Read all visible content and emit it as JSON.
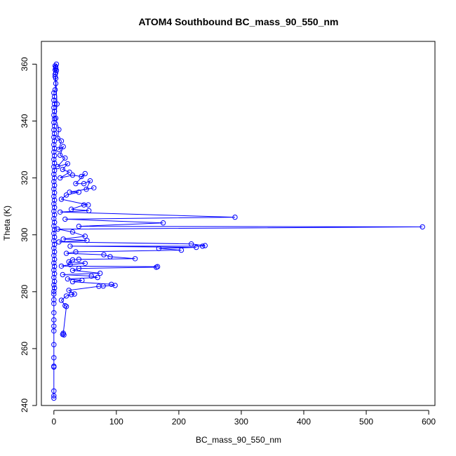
{
  "chart_data": {
    "type": "scatter",
    "title": "ATOM4 Southbound BC_mass_90_550_nm",
    "xlabel": "BC_mass_90_550_nm",
    "ylabel": "Theta (K)",
    "xlim": [
      -20,
      610
    ],
    "ylim": [
      240,
      368
    ],
    "x_ticks": [
      0,
      100,
      200,
      300,
      400,
      500,
      600
    ],
    "y_ticks": [
      240,
      260,
      280,
      300,
      320,
      340,
      360
    ],
    "connected": true,
    "series": [
      {
        "color": "#0000ff",
        "marker": "open-circle",
        "points": [
          [
            0,
            242.6
          ],
          [
            0,
            243.4
          ],
          [
            0,
            245.1
          ],
          [
            0,
            253.5
          ],
          [
            0,
            253.8
          ],
          [
            0,
            256.8
          ],
          [
            0,
            261.4
          ],
          [
            0,
            266.2
          ],
          [
            0,
            267.9
          ],
          [
            0,
            270.1
          ],
          [
            0,
            272.6
          ],
          [
            0,
            275.8
          ],
          [
            0,
            277.2
          ],
          [
            0,
            279.2
          ],
          [
            0,
            280.1
          ],
          [
            1,
            281.3
          ],
          [
            0,
            282.4
          ],
          [
            1,
            283.6
          ],
          [
            0,
            285.0
          ],
          [
            1,
            286.3
          ],
          [
            0,
            287.6
          ],
          [
            1,
            288.9
          ],
          [
            0,
            290.1
          ],
          [
            1,
            291.4
          ],
          [
            0,
            292.7
          ],
          [
            1,
            294.0
          ],
          [
            0,
            295.3
          ],
          [
            1,
            296.6
          ],
          [
            0,
            297.9
          ],
          [
            1,
            299.2
          ],
          [
            0,
            300.5
          ],
          [
            1,
            301.8
          ],
          [
            0,
            303.1
          ],
          [
            1,
            304.4
          ],
          [
            0,
            305.7
          ],
          [
            1,
            307.0
          ],
          [
            0,
            308.3
          ],
          [
            1,
            309.6
          ],
          [
            0,
            310.9
          ],
          [
            1,
            312.2
          ],
          [
            0,
            313.5
          ],
          [
            1,
            314.8
          ],
          [
            0,
            316.1
          ],
          [
            1,
            317.4
          ],
          [
            0,
            318.7
          ],
          [
            1,
            320.0
          ],
          [
            0,
            321.3
          ],
          [
            1,
            322.6
          ],
          [
            0,
            323.9
          ],
          [
            1,
            325.2
          ],
          [
            0,
            326.5
          ],
          [
            1,
            327.8
          ],
          [
            0,
            329.1
          ],
          [
            1,
            330.4
          ],
          [
            0,
            331.7
          ],
          [
            1,
            333.0
          ],
          [
            0,
            334.3
          ],
          [
            1,
            335.6
          ],
          [
            0,
            336.9
          ],
          [
            1,
            338.2
          ],
          [
            0,
            339.5
          ],
          [
            1,
            340.8
          ],
          [
            0,
            342.1
          ],
          [
            1,
            343.4
          ],
          [
            0,
            344.7
          ],
          [
            1,
            346.0
          ],
          [
            0,
            347.3
          ],
          [
            1,
            348.6
          ],
          [
            0,
            349.9
          ],
          [
            2,
            351.0
          ],
          [
            3,
            353.2
          ],
          [
            2,
            355.6
          ],
          [
            3,
            357.0
          ],
          [
            2,
            358.0
          ],
          [
            3,
            359.0
          ],
          [
            4,
            360.0
          ],
          [
            2,
            359.4
          ],
          [
            3,
            358.5
          ],
          [
            4,
            357.8
          ],
          [
            2,
            356.4
          ],
          [
            3,
            355.0
          ],
          [
            5,
            346.0
          ],
          [
            3,
            341.0
          ],
          [
            8,
            337.0
          ],
          [
            6,
            334.0
          ],
          [
            12,
            333.0
          ],
          [
            8,
            330.0
          ],
          [
            15,
            331.0
          ],
          [
            10,
            328.0
          ],
          [
            18,
            327.0
          ],
          [
            6,
            324.0
          ],
          [
            22,
            325.0
          ],
          [
            14,
            323.0
          ],
          [
            25,
            322.0
          ],
          [
            10,
            320.0
          ],
          [
            30,
            321.0
          ],
          [
            44,
            320.5
          ],
          [
            50,
            321.5
          ],
          [
            35,
            318.0
          ],
          [
            48,
            318.0
          ],
          [
            58,
            319.0
          ],
          [
            52,
            316.0
          ],
          [
            64,
            316.5
          ],
          [
            25,
            315.0
          ],
          [
            40,
            315.0
          ],
          [
            20,
            314.0
          ],
          [
            12,
            312.5
          ],
          [
            55,
            310.5
          ],
          [
            48,
            310.5
          ],
          [
            28,
            309.0
          ],
          [
            56,
            308.5
          ],
          [
            10,
            308.0
          ],
          [
            290,
            306.2
          ],
          [
            18,
            305.5
          ],
          [
            175,
            304.2
          ],
          [
            40,
            303.0
          ],
          [
            590,
            302.8
          ],
          [
            6,
            302.0
          ],
          [
            30,
            301.0
          ],
          [
            50,
            299.5
          ],
          [
            15,
            298.5
          ],
          [
            53,
            298.0
          ],
          [
            8,
            297.5
          ],
          [
            220,
            296.8
          ],
          [
            242,
            296.2
          ],
          [
            238,
            296.0
          ],
          [
            26,
            296.0
          ],
          [
            228,
            295.6
          ],
          [
            168,
            295.2
          ],
          [
            204,
            294.6
          ],
          [
            35,
            294.0
          ],
          [
            20,
            293.5
          ],
          [
            80,
            293.0
          ],
          [
            90,
            292.3
          ],
          [
            130,
            291.6
          ],
          [
            40,
            291.4
          ],
          [
            30,
            291.2
          ],
          [
            24,
            290.5
          ],
          [
            50,
            290.0
          ],
          [
            26,
            289.5
          ],
          [
            12,
            289.0
          ],
          [
            166,
            288.8
          ],
          [
            164,
            288.6
          ],
          [
            40,
            288.2
          ],
          [
            30,
            287.5
          ],
          [
            74,
            286.5
          ],
          [
            14,
            286.0
          ],
          [
            60,
            285.5
          ],
          [
            70,
            285.0
          ],
          [
            22,
            284.5
          ],
          [
            45,
            284.0
          ],
          [
            30,
            283.5
          ],
          [
            92,
            282.6
          ],
          [
            98,
            282.2
          ],
          [
            79,
            282.0
          ],
          [
            72,
            281.9
          ],
          [
            24,
            280.5
          ],
          [
            33,
            279.2
          ],
          [
            28,
            279.0
          ],
          [
            20,
            278.5
          ],
          [
            12,
            277.0
          ],
          [
            18,
            275.1
          ],
          [
            20,
            274.8
          ],
          [
            15,
            265.4
          ],
          [
            16,
            264.8
          ],
          [
            14,
            265.0
          ]
        ]
      }
    ]
  }
}
